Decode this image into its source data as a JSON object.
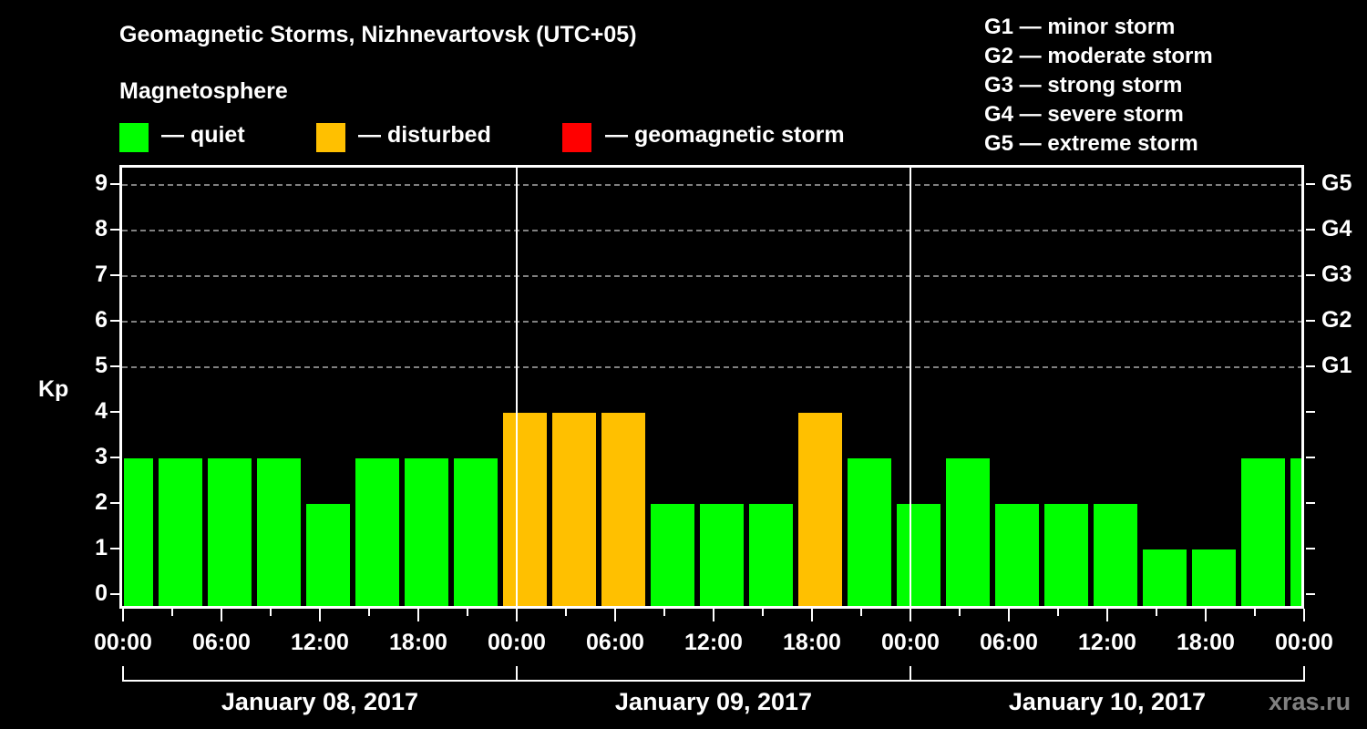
{
  "header": {
    "title": "Geomagnetic Storms, Nizhnevartovsk (UTC+05)",
    "subtitle": "Magnetosphere"
  },
  "legend": {
    "items": [
      {
        "label": "— quiet",
        "color": "#00ff00"
      },
      {
        "label": "— disturbed",
        "color": "#ffc000"
      },
      {
        "label": "— geomagnetic storm",
        "color": "#ff0000"
      }
    ]
  },
  "storm_scale": [
    "G1 — minor storm",
    "G2 — moderate storm",
    "G3 — strong storm",
    "G4 — severe storm",
    "G5 — extreme storm"
  ],
  "axis": {
    "ylabel": "Kp",
    "yticks": [
      "0",
      "1",
      "2",
      "3",
      "4",
      "5",
      "6",
      "7",
      "8",
      "9"
    ],
    "gticks": [
      {
        "label": "G1",
        "kp": 5
      },
      {
        "label": "G2",
        "kp": 6
      },
      {
        "label": "G3",
        "kp": 7
      },
      {
        "label": "G4",
        "kp": 8
      },
      {
        "label": "G5",
        "kp": 9
      }
    ],
    "xticks": [
      "00:00",
      "06:00",
      "12:00",
      "18:00",
      "00:00",
      "06:00",
      "12:00",
      "18:00",
      "00:00",
      "06:00",
      "12:00",
      "18:00",
      "00:00"
    ],
    "dates": [
      "January 08, 2017",
      "January 09, 2017",
      "January 10, 2017"
    ]
  },
  "watermark": "xras.ru",
  "chart_data": {
    "type": "bar",
    "title": "Geomagnetic Storms, Nizhnevartovsk (UTC+05)",
    "xlabel": "",
    "ylabel": "Kp",
    "ylim": [
      0,
      9
    ],
    "grid": "dashed horizontal at Kp 5-9",
    "legend_position": "top",
    "categories": [
      "Jan 08 00:00",
      "Jan 08 03:00",
      "Jan 08 06:00",
      "Jan 08 09:00",
      "Jan 08 12:00",
      "Jan 08 15:00",
      "Jan 08 18:00",
      "Jan 08 21:00",
      "Jan 09 00:00",
      "Jan 09 03:00",
      "Jan 09 06:00",
      "Jan 09 09:00",
      "Jan 09 12:00",
      "Jan 09 15:00",
      "Jan 09 18:00",
      "Jan 09 21:00",
      "Jan 10 00:00",
      "Jan 10 03:00",
      "Jan 10 06:00",
      "Jan 10 09:00",
      "Jan 10 12:00",
      "Jan 10 15:00",
      "Jan 10 18:00",
      "Jan 10 21:00",
      "Jan 11 00:00"
    ],
    "values": [
      3,
      3,
      3,
      3,
      2,
      3,
      3,
      3,
      4,
      4,
      4,
      2,
      2,
      2,
      4,
      3,
      2,
      3,
      2,
      2,
      2,
      1,
      1,
      3,
      3
    ],
    "status": [
      "quiet",
      "quiet",
      "quiet",
      "quiet",
      "quiet",
      "quiet",
      "quiet",
      "quiet",
      "disturbed",
      "disturbed",
      "disturbed",
      "quiet",
      "quiet",
      "quiet",
      "disturbed",
      "quiet",
      "quiet",
      "quiet",
      "quiet",
      "quiet",
      "quiet",
      "quiet",
      "quiet",
      "quiet",
      "quiet"
    ],
    "colors": {
      "quiet": "#00ff00",
      "disturbed": "#ffc000",
      "storm": "#ff0000"
    },
    "secondary_axis": {
      "G1": 5,
      "G2": 6,
      "G3": 7,
      "G4": 8,
      "G5": 9
    }
  }
}
